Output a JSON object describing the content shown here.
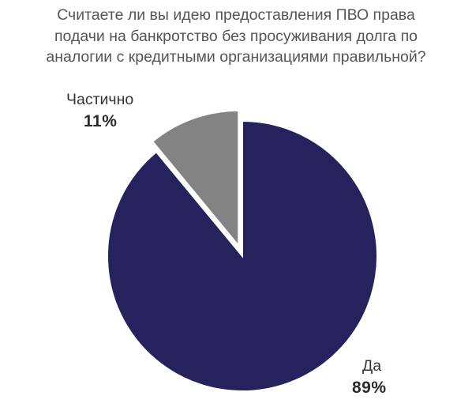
{
  "chart_data": {
    "type": "pie",
    "title_lines": [
      "Считаете ли вы идею предоставления ПВО права",
      "подачи на банкротство без просуживания долга по",
      "аналогии с кредитными организациями правильной?"
    ],
    "slices": [
      {
        "label": "Да",
        "value": 89,
        "display": "89%",
        "color": "#26225e"
      },
      {
        "label": "Частично",
        "value": 11,
        "display": "11%",
        "color": "#838383"
      }
    ],
    "exploded_slice": "Частично",
    "legend": "none"
  }
}
